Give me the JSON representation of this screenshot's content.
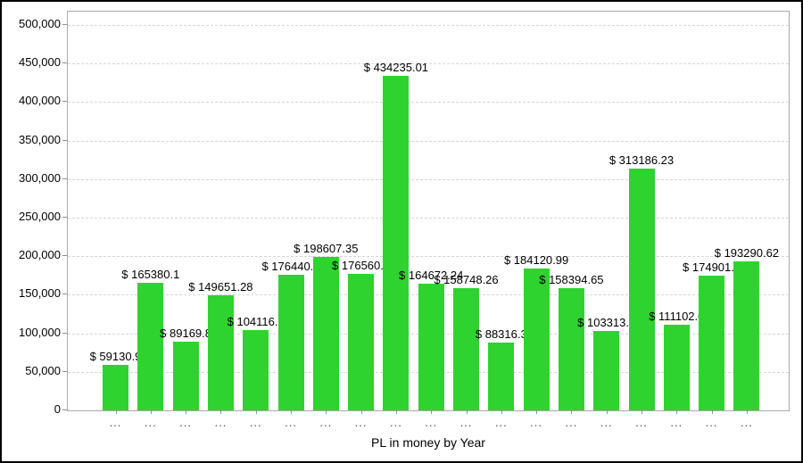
{
  "chart_data": {
    "type": "bar",
    "title": "",
    "xlabel": "PL in money by Year",
    "ylabel": "",
    "ylim": [
      0,
      500000
    ],
    "grid": "horizontal-dashed",
    "legend": "none",
    "bar_color": "#2fd32f",
    "label_prefix": "$ ",
    "x_tick_label": "...",
    "categories": [
      "...",
      "...",
      "...",
      "...",
      "...",
      "...",
      "...",
      "...",
      "...",
      "...",
      "...",
      "...",
      "...",
      "...",
      "...",
      "...",
      "...",
      "...",
      "..."
    ],
    "values": [
      59130.9,
      165380.1,
      89169.8,
      149651.28,
      104116.0,
      176440.5,
      198607.35,
      176560.3,
      434235.01,
      164672.24,
      158748.26,
      88316.3,
      184120.99,
      158394.65,
      103313.0,
      313186.23,
      111102.0,
      174901.5,
      193290.62
    ],
    "bar_labels": [
      "$ 59130.9",
      "$ 165380.1",
      "$ 89169.8",
      "$ 149651.28",
      "$ 104116.0",
      "$ 176440.5",
      "$ 198607.35",
      "$ 176560.3",
      "$ 434235.01",
      "$ 164672.24",
      "$ 158748.26",
      "$ 88316.3",
      "$ 184120.99",
      "$ 158394.65",
      "$ 103313.0",
      "$ 313186.23",
      "$ 111102.0",
      "$ 174901.5",
      "$ 193290.62"
    ],
    "y_ticks": [
      "0",
      "50,000",
      "100,000",
      "150,000",
      "200,000",
      "250,000",
      "300,000",
      "350,000",
      "400,000",
      "450,000",
      "500,000"
    ]
  }
}
